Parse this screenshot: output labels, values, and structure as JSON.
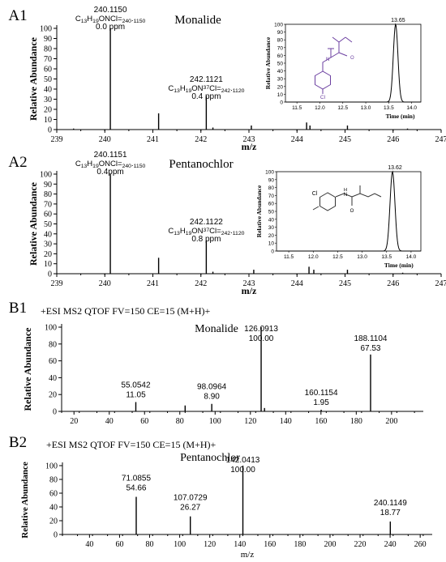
{
  "chart_data": [
    {
      "id": "A1",
      "panel_label": "A1",
      "type": "bar",
      "compound": "Monalide",
      "xlabel": "m/z",
      "ylabel": "Relative Abundance",
      "xlim": [
        239,
        247
      ],
      "ylim": [
        0,
        100
      ],
      "x_ticks": [
        239,
        240,
        241,
        242,
        243,
        244,
        245,
        246,
        247
      ],
      "y_ticks": [
        0,
        10,
        20,
        30,
        40,
        50,
        60,
        70,
        80,
        90,
        100
      ],
      "peaks": [
        {
          "x": 239.35,
          "y": 1
        },
        {
          "x": 240.115,
          "y": 100
        },
        {
          "x": 241.12,
          "y": 16
        },
        {
          "x": 242.112,
          "y": 33
        },
        {
          "x": 242.25,
          "y": 2
        },
        {
          "x": 243.05,
          "y": 4
        },
        {
          "x": 244.2,
          "y": 7
        },
        {
          "x": 244.27,
          "y": 4
        },
        {
          "x": 245.05,
          "y": 4
        },
        {
          "x": 246.3,
          "y": 1
        }
      ],
      "annotations": [
        {
          "x": 240.115,
          "lines": [
            "240.1150",
            "C13H19ONCl=240.1150",
            "0.0 ppm"
          ]
        },
        {
          "x": 242.112,
          "lines": [
            "242.1121",
            "C13H19ON37Cl=242.1120",
            "0.4 ppm"
          ]
        }
      ],
      "inset": {
        "type": "line",
        "xlabel": "Time (min)",
        "ylabel": "Relative Abundance",
        "xlim": [
          11.25,
          14.2
        ],
        "ylim": [
          0,
          100
        ],
        "x_ticks": [
          11.5,
          12.0,
          12.5,
          13.0,
          13.5,
          14.0
        ],
        "y_ticks": [
          0,
          10,
          20,
          30,
          40,
          50,
          60,
          70,
          80,
          90,
          100
        ],
        "peak_rt": 13.65,
        "peak_label": "13.65",
        "peak_width": 0.05,
        "structure_label": "Cl"
      }
    },
    {
      "id": "A2",
      "panel_label": "A2",
      "type": "bar",
      "compound": "Pentanochlor",
      "xlabel": "m/z",
      "ylabel": "Relative Abundance",
      "xlim": [
        239,
        247
      ],
      "ylim": [
        0,
        100
      ],
      "x_ticks": [
        239,
        240,
        241,
        242,
        243,
        244,
        245,
        246,
        247
      ],
      "y_ticks": [
        0,
        10,
        20,
        30,
        40,
        50,
        60,
        70,
        80,
        90,
        100
      ],
      "peaks": [
        {
          "x": 240.115,
          "y": 100
        },
        {
          "x": 241.12,
          "y": 16
        },
        {
          "x": 242.112,
          "y": 33
        },
        {
          "x": 242.25,
          "y": 2
        },
        {
          "x": 243.1,
          "y": 4
        },
        {
          "x": 244.25,
          "y": 7
        },
        {
          "x": 244.35,
          "y": 4
        },
        {
          "x": 245.05,
          "y": 4
        },
        {
          "x": 246.2,
          "y": 1
        }
      ],
      "annotations": [
        {
          "x": 240.115,
          "lines": [
            "240.1151",
            "C13H19ONCl=240.1150",
            "0.4ppm"
          ]
        },
        {
          "x": 242.112,
          "lines": [
            "242.1122",
            "C13H19ON37Cl=242.1120",
            "0.8 ppm"
          ]
        }
      ],
      "inset": {
        "type": "line",
        "xlabel": "Time (min)",
        "ylabel": "Relative Abundance",
        "xlim": [
          11.25,
          14.2
        ],
        "ylim": [
          0,
          100
        ],
        "x_ticks": [
          11.5,
          12.0,
          12.5,
          13.0,
          13.5,
          14.0
        ],
        "y_ticks": [
          0,
          10,
          20,
          30,
          40,
          50,
          60,
          70,
          80,
          90,
          100
        ],
        "peak_rt": 13.62,
        "peak_label": "13.62",
        "peak_width": 0.05,
        "structure_label": "Cl"
      }
    },
    {
      "id": "B1",
      "panel_label": "B1",
      "type": "bar",
      "title": "+ESI MS2 QTOF FV=150  CE=15 (M+H)+",
      "compound": "Monalide",
      "xlabel": "",
      "ylabel": "Relative Abundance",
      "xlim": [
        13,
        218
      ],
      "ylim": [
        0,
        100
      ],
      "x_ticks": [
        20,
        40,
        60,
        80,
        100,
        120,
        140,
        160,
        180,
        200
      ],
      "y_ticks": [
        0,
        20,
        40,
        60,
        80,
        100
      ],
      "peaks": [
        {
          "x": 55.0542,
          "y": 11.05
        },
        {
          "x": 83,
          "y": 7
        },
        {
          "x": 98.0964,
          "y": 8.9
        },
        {
          "x": 126.0913,
          "y": 100
        },
        {
          "x": 128,
          "y": 4
        },
        {
          "x": 160.1154,
          "y": 1.95
        },
        {
          "x": 188.1104,
          "y": 67.53
        }
      ],
      "annotations": [
        {
          "x": 55.0542,
          "lines": [
            "55.0542",
            "11.05"
          ]
        },
        {
          "x": 98.0964,
          "lines": [
            "98.0964",
            "8.90"
          ]
        },
        {
          "x": 126.0913,
          "lines": [
            "126.0913",
            "100.00"
          ]
        },
        {
          "x": 160.1154,
          "lines": [
            "160.1154",
            "1.95"
          ]
        },
        {
          "x": 188.1104,
          "lines": [
            "188.1104",
            "67.53"
          ]
        }
      ]
    },
    {
      "id": "B2",
      "panel_label": "B2",
      "type": "bar",
      "title": "+ESI MS2 QTOF FV=150  CE=15 (M+H)+",
      "compound": "Pentanochlor",
      "xlabel": "m/z",
      "ylabel": "Relative Abundance",
      "xlim": [
        22,
        268
      ],
      "ylim": [
        0,
        100
      ],
      "x_ticks": [
        40,
        60,
        80,
        100,
        120,
        140,
        160,
        180,
        200,
        220,
        240,
        260
      ],
      "y_ticks": [
        0,
        20,
        40,
        60,
        80,
        100
      ],
      "peaks": [
        {
          "x": 71.0855,
          "y": 54.66
        },
        {
          "x": 107.0729,
          "y": 26.27
        },
        {
          "x": 142.0413,
          "y": 100
        },
        {
          "x": 240.1149,
          "y": 18.77
        }
      ],
      "annotations": [
        {
          "x": 71.0855,
          "lines": [
            "71.0855",
            "54.66"
          ]
        },
        {
          "x": 107.0729,
          "lines": [
            "107.0729",
            "26.27"
          ]
        },
        {
          "x": 142.0413,
          "lines": [
            "142.0413",
            "100.00"
          ]
        },
        {
          "x": 240.1149,
          "lines": [
            "240.1149",
            "18.77"
          ]
        }
      ]
    }
  ]
}
